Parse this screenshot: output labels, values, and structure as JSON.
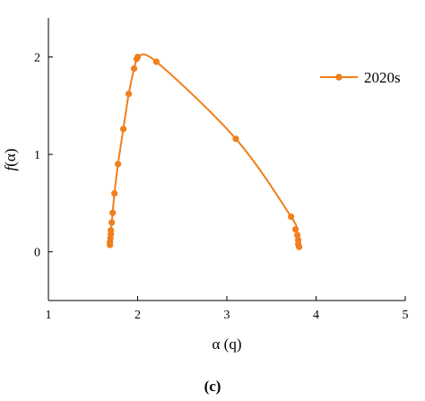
{
  "chart_data": {
    "type": "line",
    "xlabel": "α (q)",
    "ylabel_prefix": "f",
    "ylabel_suffix": "(α)",
    "xlim": [
      1,
      5
    ],
    "ylim": [
      -0.5,
      2.4
    ],
    "xticks": [
      "1",
      "2",
      "3",
      "4",
      "5"
    ],
    "yticks": [
      "0",
      "1",
      "2"
    ],
    "grid": false,
    "legend_position": "top-right",
    "caption": "(c)",
    "series": [
      {
        "name": "2020s",
        "color": "#f07f1c",
        "marker": "circle",
        "points": [
          [
            1.69,
            0.07
          ],
          [
            1.69,
            0.1
          ],
          [
            1.695,
            0.14
          ],
          [
            1.7,
            0.18
          ],
          [
            1.7,
            0.22
          ],
          [
            1.71,
            0.3
          ],
          [
            1.72,
            0.4
          ],
          [
            1.74,
            0.6
          ],
          [
            1.78,
            0.9
          ],
          [
            1.84,
            1.26
          ],
          [
            1.9,
            1.62
          ],
          [
            1.96,
            1.88
          ],
          [
            1.99,
            1.98
          ],
          [
            2.0,
            2.0
          ],
          [
            2.21,
            1.95
          ],
          [
            3.1,
            1.16
          ],
          [
            3.72,
            0.36
          ],
          [
            3.77,
            0.23
          ],
          [
            3.79,
            0.17
          ],
          [
            3.8,
            0.12
          ],
          [
            3.8,
            0.08
          ],
          [
            3.81,
            0.05
          ]
        ]
      }
    ]
  }
}
